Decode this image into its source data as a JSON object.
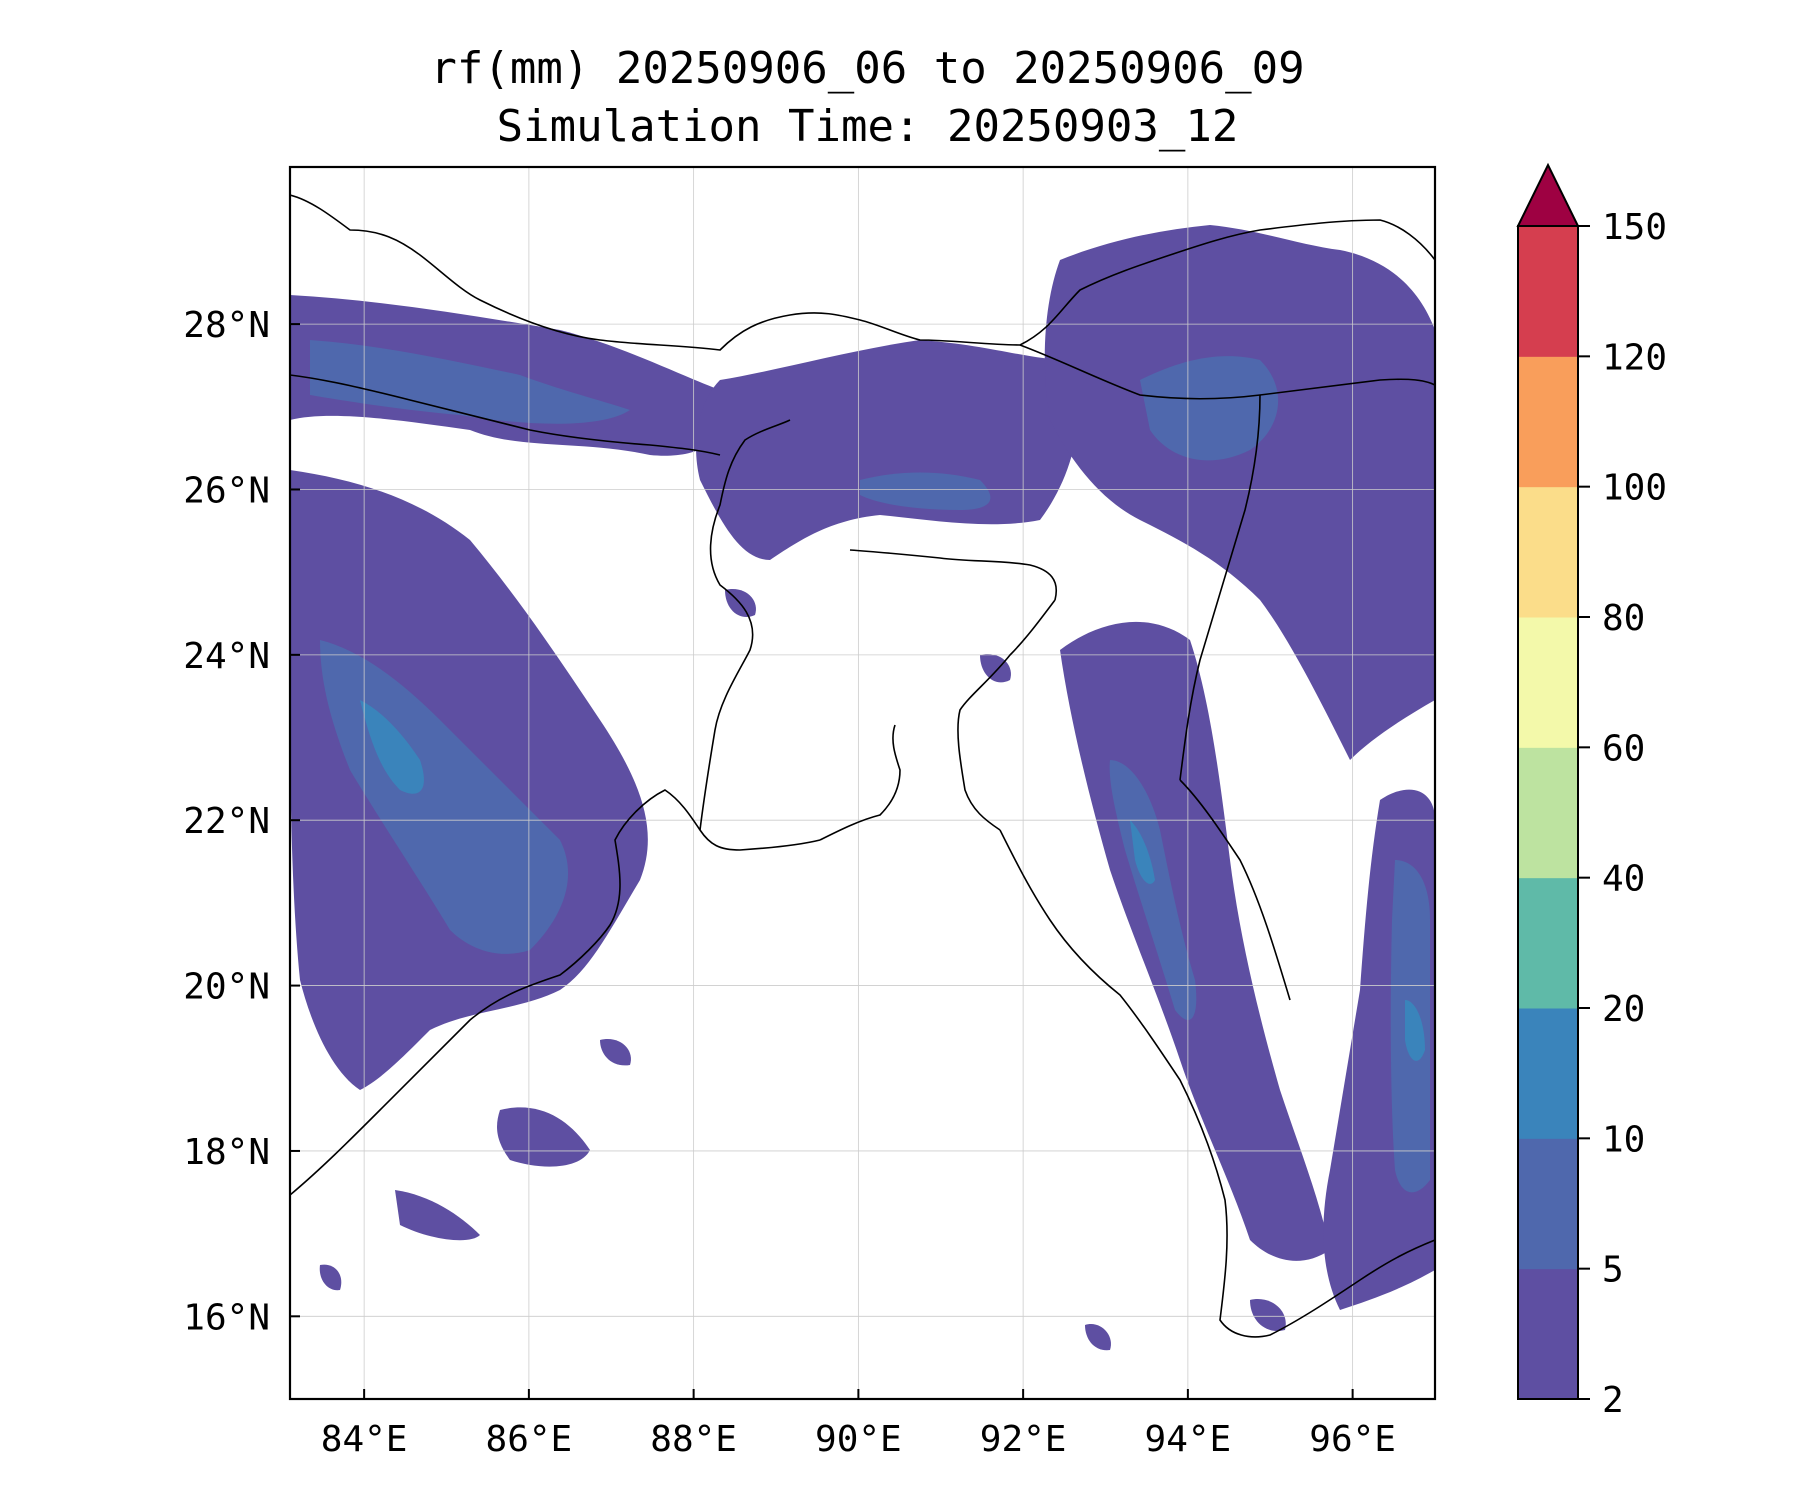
{
  "title": "rf(mm) 20250906_06 to 20250906_09",
  "subtitle": "Simulation Time: 20250903_12",
  "map": {
    "lon_range": [
      83.1,
      97.0
    ],
    "lat_range": [
      15.0,
      29.9
    ],
    "x_ticks": [
      "84°E",
      "86°E",
      "88°E",
      "90°E",
      "92°E",
      "94°E",
      "96°E"
    ],
    "x_tick_values": [
      84,
      86,
      88,
      90,
      92,
      94,
      96
    ],
    "y_ticks": [
      "28°N",
      "26°N",
      "24°N",
      "22°N",
      "20°N",
      "18°N",
      "16°N"
    ],
    "y_tick_values": [
      28,
      26,
      24,
      22,
      20,
      18,
      16
    ],
    "grid": true
  },
  "colorbar": {
    "extend": "max",
    "levels": [
      "2",
      "5",
      "10",
      "20",
      "40",
      "60",
      "80",
      "100",
      "120",
      "150"
    ],
    "colors": [
      "#5e4fa2",
      "#4f68ad",
      "#3a84bb",
      "#5fbaa8",
      "#bde3a0",
      "#f3f9aa",
      "#fbdd8a",
      "#f99e5b",
      "#d53e4f",
      "#9e0142"
    ]
  },
  "colors": {
    "rain_light": "#5e4fa2",
    "rain_mid": "#4f68ad",
    "rain_heavy": "#3a84bb",
    "rain_peak": "#5fbaa8",
    "coast": "#000000"
  }
}
